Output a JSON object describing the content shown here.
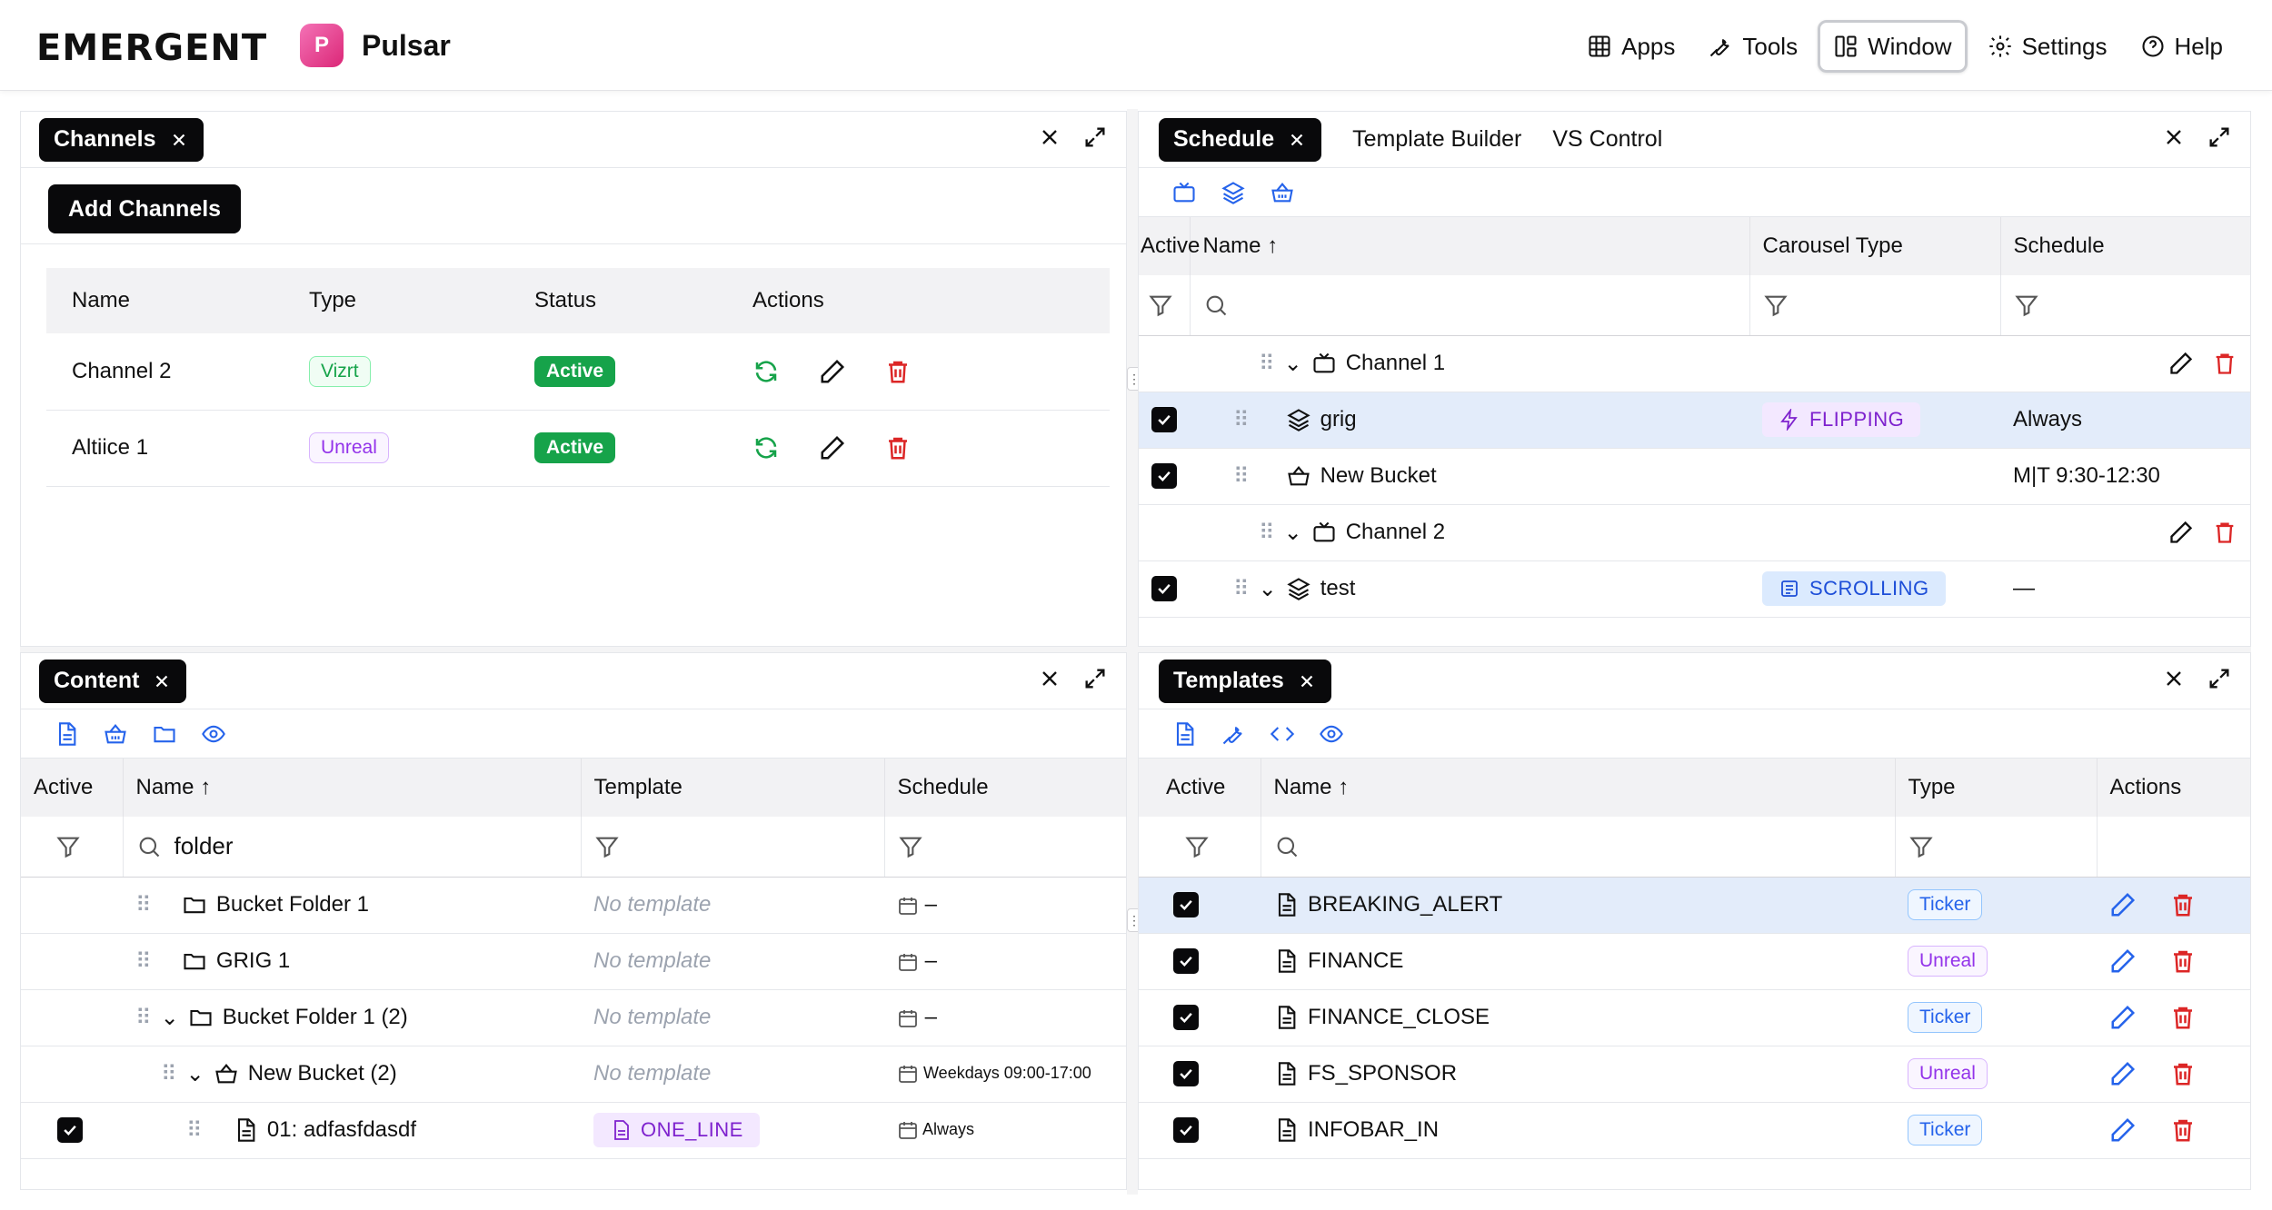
{
  "brand": {
    "logo": "EMERGENT",
    "app_initial": "P",
    "app_name": "Pulsar"
  },
  "menu": [
    {
      "label": "Apps",
      "icon": "grid-icon"
    },
    {
      "label": "Tools",
      "icon": "wrench-icon"
    },
    {
      "label": "Window",
      "icon": "layout-icon",
      "active": true
    },
    {
      "label": "Settings",
      "icon": "gear-icon"
    },
    {
      "label": "Help",
      "icon": "help-circle-icon"
    }
  ],
  "channels": {
    "tab": "Channels",
    "add_button": "Add Channels",
    "columns": [
      "Name",
      "Type",
      "Status",
      "Actions"
    ],
    "rows": [
      {
        "name": "Channel 2",
        "type": "Vizrt",
        "status": "Active"
      },
      {
        "name": "Altiice 1",
        "type": "Unreal",
        "status": "Active"
      }
    ]
  },
  "schedule": {
    "tabs": [
      "Schedule",
      "Template Builder",
      "VS Control"
    ],
    "columns": [
      "Active",
      "Name",
      "Carousel Type",
      "Schedule"
    ],
    "rows": [
      {
        "kind": "group",
        "name": "Channel 1"
      },
      {
        "kind": "item",
        "name": "grig",
        "carousel": "FLIPPING",
        "schedule": "Always",
        "selected": true
      },
      {
        "kind": "item",
        "name": "New Bucket",
        "carousel": "",
        "schedule": "M|T 9:30-12:30"
      },
      {
        "kind": "group",
        "name": "Channel 2"
      },
      {
        "kind": "item",
        "name": "test",
        "carousel": "SCROLLING",
        "schedule": "—"
      }
    ]
  },
  "content": {
    "tab": "Content",
    "columns": [
      "Active",
      "Name",
      "Template",
      "Schedule"
    ],
    "search_value": "folder",
    "rows": [
      {
        "name": "Bucket Folder 1",
        "template": "No template",
        "schedule": "–"
      },
      {
        "name": "GRIG 1",
        "template": "No template",
        "schedule": "–"
      },
      {
        "name": "Bucket Folder 1 (2)",
        "template": "No template",
        "schedule": "–"
      },
      {
        "name": "New Bucket (2)",
        "template": "No template",
        "schedule": "Weekdays 09:00-17:00"
      },
      {
        "name": "01: adfasfdasdf",
        "template": "ONE_LINE",
        "schedule": "Always"
      }
    ]
  },
  "templates": {
    "tab": "Templates",
    "columns": [
      "Active",
      "Name",
      "Type",
      "Actions"
    ],
    "rows": [
      {
        "name": "BREAKING_ALERT",
        "type": "Ticker"
      },
      {
        "name": "FINANCE",
        "type": "Unreal"
      },
      {
        "name": "FINANCE_CLOSE",
        "type": "Ticker"
      },
      {
        "name": "FS_SPONSOR",
        "type": "Unreal"
      },
      {
        "name": "INFOBAR_IN",
        "type": "Ticker"
      }
    ]
  },
  "colors": {
    "accent": "#2563eb",
    "danger": "#dc2626",
    "success": "#16a34a",
    "dark": "#09090b"
  }
}
